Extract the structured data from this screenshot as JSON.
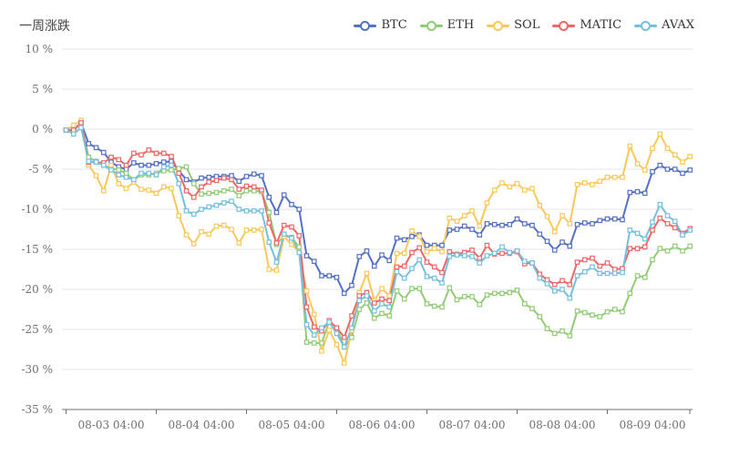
{
  "chart_data": {
    "type": "line",
    "title": "一周涨跌",
    "ylim": [
      -35,
      10
    ],
    "yticks": [
      10,
      5,
      0,
      -5,
      -10,
      -15,
      -20,
      -25,
      -30,
      -35
    ],
    "ytick_suffix": " %",
    "xtick_labels": [
      "08-03 04:00",
      "08-04 04:00",
      "08-05 04:00",
      "08-06 04:00",
      "08-07 04:00",
      "08-08 04:00",
      "08-09 04:00"
    ],
    "x_interval_hours": 2,
    "grid": true,
    "legend_placement": "top-right",
    "series": [
      {
        "name": "BTC",
        "color": "#5470c6",
        "values": [
          -0.1,
          -0.1,
          0.8,
          -1.8,
          -2.3,
          -2.9,
          -4.1,
          -4.7,
          -5,
          -4.2,
          -4.5,
          -4.5,
          -4.3,
          -4.1,
          -4,
          -5.2,
          -6.3,
          -6.6,
          -6.1,
          -6,
          -5.9,
          -5.9,
          -5.8,
          -6.5,
          -5.9,
          -5.6,
          -5.8,
          -8.5,
          -10.4,
          -8.2,
          -9.4,
          -10,
          -15.8,
          -16.5,
          -18.3,
          -18.3,
          -18.5,
          -20.5,
          -19.5,
          -15.9,
          -15.2,
          -17.1,
          -15.7,
          -16.4,
          -13.6,
          -13.8,
          -13.4,
          -13.2,
          -14.5,
          -14.5,
          -14.5,
          -12.6,
          -12.5,
          -12.1,
          -12.5,
          -13.2,
          -11.8,
          -11.9,
          -12,
          -11.9,
          -11.2,
          -11.8,
          -12,
          -13.1,
          -14,
          -15.1,
          -14.1,
          -14.6,
          -11.9,
          -11.7,
          -11.8,
          -11.4,
          -11.2,
          -11.2,
          -11.3,
          -7.9,
          -7.8,
          -8,
          -5.3,
          -4.5,
          -5,
          -5,
          -5.5,
          -5.1
        ]
      },
      {
        "name": "ETH",
        "color": "#91cc75",
        "values": [
          -0.1,
          -0.2,
          0.8,
          -3.5,
          -4,
          -4.5,
          -4.9,
          -5.1,
          -5.5,
          -6.3,
          -5.7,
          -5.7,
          -5.5,
          -5.2,
          -5.1,
          -4.9,
          -4.7,
          -6.8,
          -8.1,
          -8,
          -7.9,
          -7.7,
          -7.5,
          -8.3,
          -7.7,
          -7.7,
          -7.8,
          -10.4,
          -14.4,
          -13.3,
          -13.5,
          -14.7,
          -26.6,
          -26.7,
          -26.7,
          -24,
          -24.8,
          -27.2,
          -26,
          -22.5,
          -21.7,
          -23.6,
          -23,
          -23.3,
          -20.2,
          -21.2,
          -19.9,
          -19.9,
          -21.8,
          -22.1,
          -22.2,
          -19.8,
          -21.3,
          -20.9,
          -20.9,
          -21.9,
          -20.7,
          -20.5,
          -20.5,
          -20.4,
          -20.1,
          -21.8,
          -22.4,
          -23.4,
          -24.9,
          -25.5,
          -25.2,
          -25.8,
          -22.7,
          -22.9,
          -23.2,
          -23.4,
          -22.8,
          -22.5,
          -22.8,
          -20.5,
          -18.3,
          -18.5,
          -16.3,
          -14.9,
          -15.2,
          -14.6,
          -15.2,
          -14.6
        ]
      },
      {
        "name": "SOL",
        "color": "#fac858",
        "values": [
          -0.1,
          0.5,
          1.1,
          -4.5,
          -5.8,
          -7.7,
          -4.5,
          -6.8,
          -7.4,
          -6.6,
          -7.5,
          -7.6,
          -8,
          -7.2,
          -7.4,
          -10.8,
          -13.2,
          -14.3,
          -12.8,
          -13.1,
          -12.1,
          -12,
          -12.5,
          -14.2,
          -12.6,
          -12.6,
          -12.5,
          -17.5,
          -17.6,
          -13.4,
          -14.4,
          -15.3,
          -20.2,
          -23.1,
          -27.7,
          -25.1,
          -26.9,
          -29.2,
          -25.1,
          -20.4,
          -18,
          -21.4,
          -19.9,
          -20.8,
          -15.5,
          -15.5,
          -12.7,
          -13.4,
          -15.3,
          -14.9,
          -15.3,
          -11.1,
          -11.5,
          -10.8,
          -10.2,
          -12.1,
          -9.2,
          -7.6,
          -6.7,
          -7.2,
          -6.8,
          -7.6,
          -7.4,
          -9.5,
          -10.9,
          -12.8,
          -10.8,
          -11.8,
          -6.9,
          -6.7,
          -6.9,
          -6.5,
          -6,
          -6,
          -6,
          -2.1,
          -4.3,
          -5.1,
          -2.4,
          -0.6,
          -2.4,
          -3.2,
          -4.1,
          -3.4
        ]
      },
      {
        "name": "MATIC",
        "color": "#ee6666",
        "values": [
          -0.1,
          -0.1,
          0.8,
          -4.1,
          -4.1,
          -4.2,
          -3.5,
          -3.8,
          -4.5,
          -3,
          -3.2,
          -2.6,
          -3,
          -3,
          -3.4,
          -5.5,
          -7.7,
          -8.5,
          -7.2,
          -6.6,
          -6.4,
          -6.1,
          -6.3,
          -7.5,
          -7.1,
          -7.2,
          -7.6,
          -11.7,
          -14.2,
          -12,
          -12.2,
          -13.3,
          -22.2,
          -24.7,
          -25.2,
          -23.9,
          -24.8,
          -26,
          -23.3,
          -20.8,
          -20.4,
          -21.7,
          -21.2,
          -21.4,
          -17.2,
          -17.1,
          -15.4,
          -14.8,
          -16.6,
          -17.2,
          -17.9,
          -15.3,
          -15.6,
          -15.4,
          -15.1,
          -16.1,
          -14.5,
          -15.6,
          -15.5,
          -15.5,
          -15.3,
          -16.8,
          -16.7,
          -18.1,
          -18.8,
          -19.4,
          -18.9,
          -19.4,
          -16.6,
          -16.3,
          -16.1,
          -17.1,
          -16.7,
          -17.5,
          -17.4,
          -14.9,
          -14.9,
          -14.7,
          -12.6,
          -11.1,
          -11.8,
          -12.3,
          -13,
          -12.4
        ]
      },
      {
        "name": "AVAX",
        "color": "#73c0de",
        "values": [
          -0.1,
          -0.6,
          0.2,
          -4,
          -4.1,
          -4.5,
          -5.1,
          -5.7,
          -6,
          -6.3,
          -5.5,
          -5.5,
          -5.7,
          -4.7,
          -4.5,
          -6.8,
          -10.2,
          -10.6,
          -10,
          -9.7,
          -9.5,
          -9.2,
          -9,
          -10,
          -10.2,
          -10.2,
          -10.2,
          -14.1,
          -16.6,
          -13.1,
          -13.6,
          -15.4,
          -24.4,
          -25.7,
          -24.8,
          -24.1,
          -25.5,
          -27.2,
          -24.8,
          -21.4,
          -20.8,
          -22.7,
          -21.8,
          -22.2,
          -17.8,
          -18.6,
          -17.4,
          -16.3,
          -18.4,
          -18.6,
          -19.2,
          -15.9,
          -15.7,
          -15.8,
          -15.9,
          -16.7,
          -15.8,
          -15.5,
          -14.7,
          -15.4,
          -15.2,
          -16.5,
          -16.7,
          -18.6,
          -19.3,
          -20.2,
          -20,
          -21.1,
          -18.3,
          -17.8,
          -17.2,
          -18,
          -18,
          -18,
          -17.9,
          -12.6,
          -13,
          -13.7,
          -11.6,
          -9.4,
          -10.8,
          -11.5,
          -13.2,
          -12.6
        ]
      }
    ]
  }
}
